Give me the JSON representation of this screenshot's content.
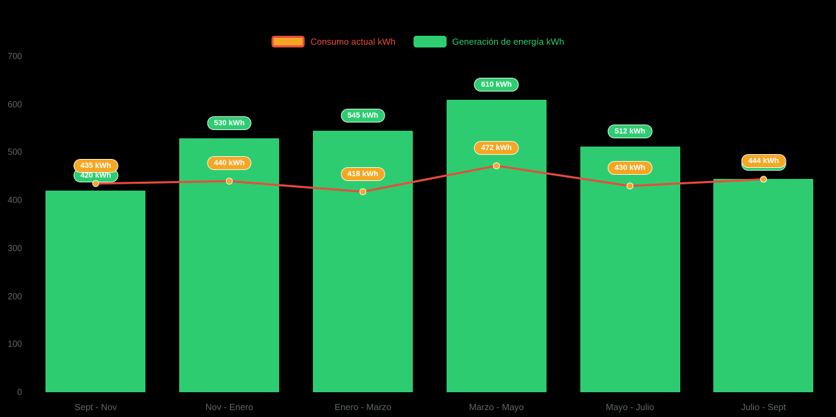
{
  "chart_data": {
    "type": "bar",
    "subtype": "bar-with-line-overlay",
    "categories": [
      "Sept - Nov",
      "Nov - Enero",
      "Enero - Marzo",
      "Marzo - Mayo",
      "Mayo - Julio",
      "Julio - Sept"
    ],
    "series": [
      {
        "name": "Consumo actual kWh",
        "type": "line",
        "values": [
          435,
          440,
          418,
          472,
          430,
          444
        ],
        "line_color": "#e74c3c",
        "marker_color": "#f5a623",
        "label_bg": "#f5a623"
      },
      {
        "name": "Generación de energía kWh",
        "type": "bar",
        "values": [
          420,
          530,
          545,
          610,
          512,
          445
        ],
        "color": "#2ecc71",
        "label_bg": "#2ecc71"
      }
    ],
    "ylim": [
      0,
      700
    ],
    "yticks": [
      0,
      100,
      200,
      300,
      400,
      500,
      600,
      700
    ],
    "label_suffix": " kWh",
    "legend_position": "top",
    "grid": false,
    "style": {
      "background": "#000000",
      "axis_label_color": "#5f6763",
      "bar_color": "#2ecc71",
      "line_color": "#e74c3c",
      "marker_color": "#f5a623"
    }
  },
  "legend": {
    "consumo_label": "Consumo actual kWh",
    "generacion_label": "Generación de energía kWh"
  }
}
